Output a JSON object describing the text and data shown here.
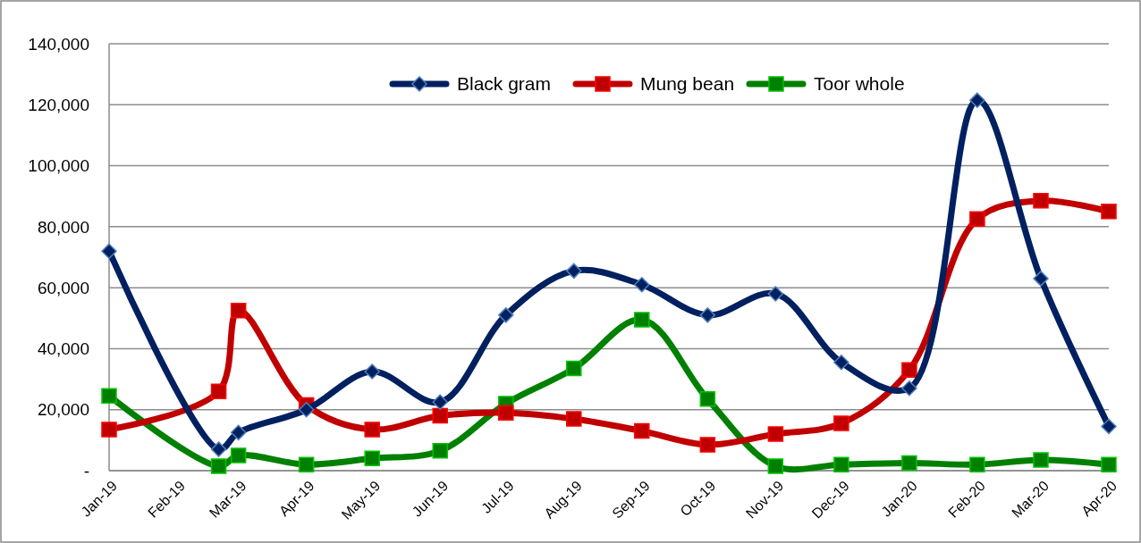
{
  "chart_data": {
    "type": "line",
    "x": [
      "2019-01-01",
      "2019-02-20",
      "2019-03-01",
      "2019-04-01",
      "2019-05-01",
      "2019-06-01",
      "2019-07-01",
      "2019-08-01",
      "2019-09-01",
      "2019-10-01",
      "2019-11-01",
      "2019-12-01",
      "2020-01-01",
      "2020-02-01",
      "2020-03-01",
      "2020-04-01"
    ],
    "series": [
      {
        "name": "Black gram",
        "color": "#002060",
        "marker": "diamond",
        "values": [
          72000,
          7000,
          12500,
          20000,
          32500,
          22500,
          51000,
          65500,
          61000,
          51000,
          58000,
          35500,
          27000,
          121500,
          63000,
          14500
        ]
      },
      {
        "name": "Mung bean",
        "color": "#c00000",
        "marker": "square",
        "values": [
          13500,
          26000,
          52500,
          21500,
          13500,
          18000,
          19000,
          17000,
          13000,
          8500,
          12000,
          15500,
          33000,
          82500,
          88500,
          85000
        ]
      },
      {
        "name": "Toor whole",
        "color": "#008000",
        "marker": "square",
        "values": [
          24500,
          1500,
          5000,
          2000,
          4000,
          6500,
          22000,
          33500,
          49500,
          23500,
          1500,
          2000,
          2500,
          2000,
          3500,
          2000
        ]
      }
    ],
    "xlim": [
      "2019-01-01",
      "2020-04-01"
    ],
    "xticks": [
      {
        "value": "2019-01-01",
        "label": "Jan-19"
      },
      {
        "value": "2019-02-01",
        "label": "Feb-19"
      },
      {
        "value": "2019-03-01",
        "label": "Mar-19"
      },
      {
        "value": "2019-04-01",
        "label": "Apr-19"
      },
      {
        "value": "2019-05-01",
        "label": "May-19"
      },
      {
        "value": "2019-06-01",
        "label": "Jun-19"
      },
      {
        "value": "2019-07-01",
        "label": "Jul-19"
      },
      {
        "value": "2019-08-01",
        "label": "Aug-19"
      },
      {
        "value": "2019-09-01",
        "label": "Sep-19"
      },
      {
        "value": "2019-10-01",
        "label": "Oct-19"
      },
      {
        "value": "2019-11-01",
        "label": "Nov-19"
      },
      {
        "value": "2019-12-01",
        "label": "Dec-19"
      },
      {
        "value": "2020-01-01",
        "label": "Jan-20"
      },
      {
        "value": "2020-02-01",
        "label": "Feb-20"
      },
      {
        "value": "2020-03-01",
        "label": "Mar-20"
      },
      {
        "value": "2020-04-01",
        "label": "Apr-20"
      }
    ],
    "ylim": [
      0,
      140000
    ],
    "yticks": [
      {
        "value": 0,
        "label": "-"
      },
      {
        "value": 20000,
        "label": "20,000"
      },
      {
        "value": 40000,
        "label": "40,000"
      },
      {
        "value": 60000,
        "label": "60,000"
      },
      {
        "value": 80000,
        "label": "80,000"
      },
      {
        "value": 100000,
        "label": "100,000"
      },
      {
        "value": 120000,
        "label": "120,000"
      },
      {
        "value": 140000,
        "label": "140,000"
      }
    ],
    "grid": "y",
    "legend": "top",
    "line_style": "solid"
  }
}
